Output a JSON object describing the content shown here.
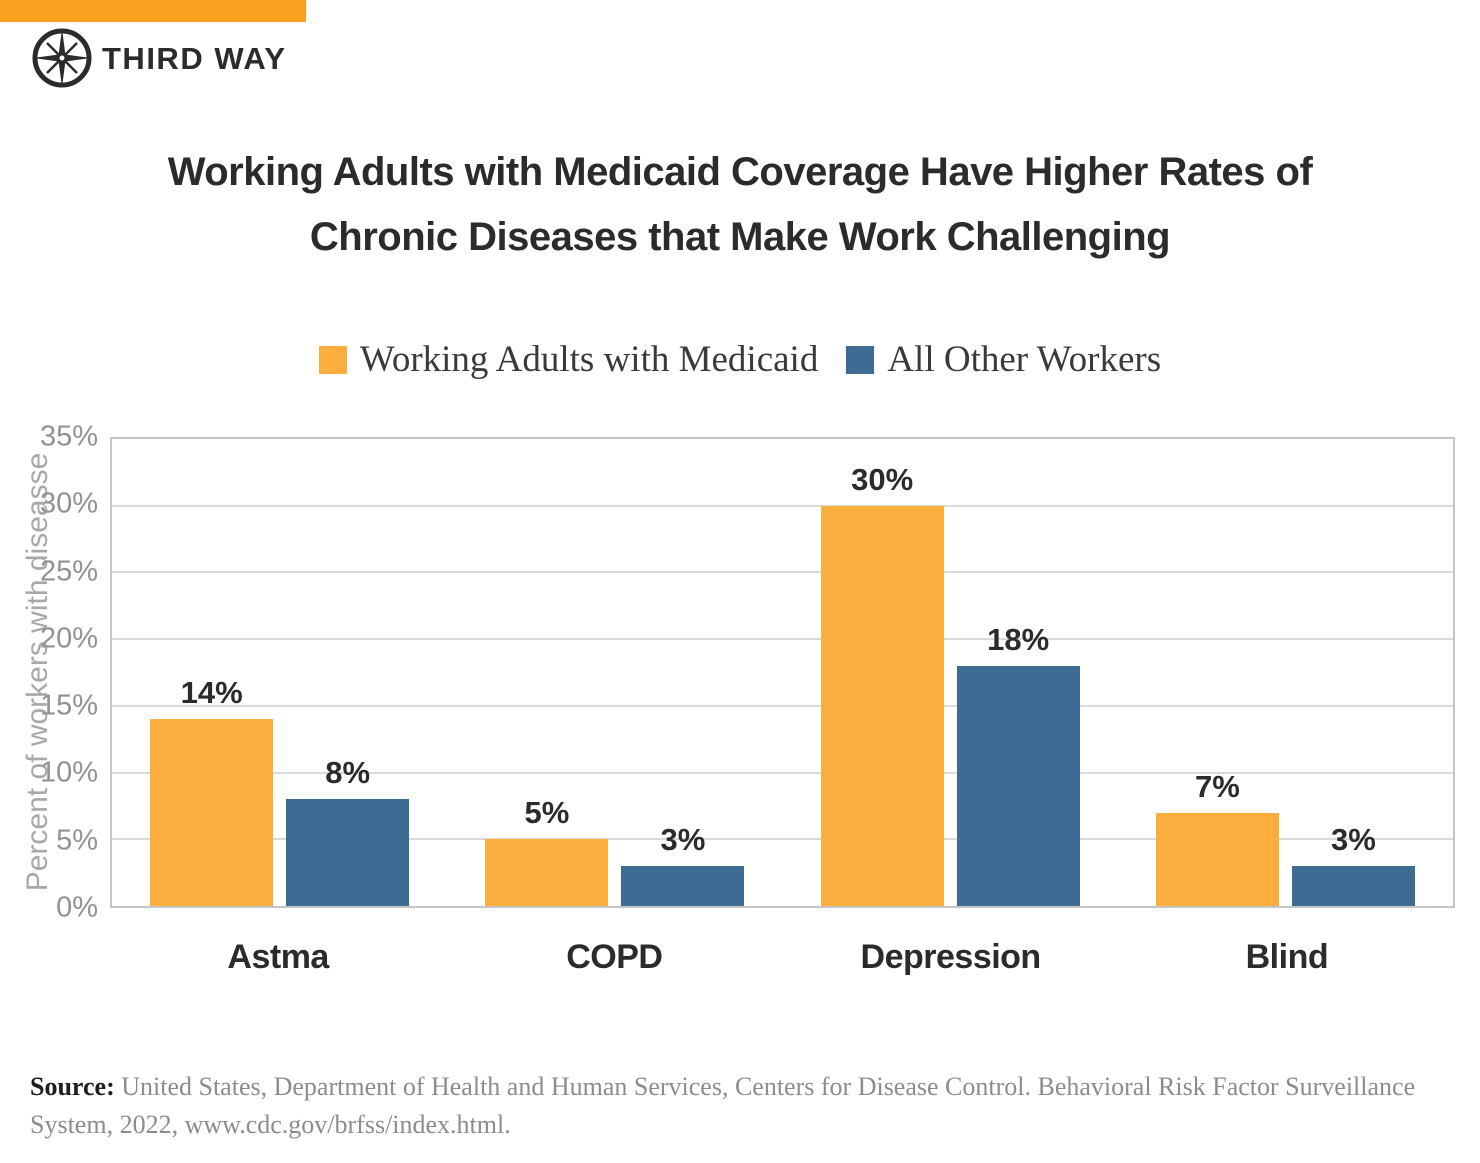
{
  "brand": {
    "name": "THIRD WAY",
    "accent_color": "#F9A11E",
    "logo_icon": "compass-star-icon",
    "dark_color": "#2b2b2b"
  },
  "title": {
    "line1": "Working Adults with Medicaid Coverage Have Higher Rates of",
    "line2": "Chronic Diseases that Make Work Challenging"
  },
  "chart_data": {
    "type": "bar",
    "categories": [
      "Astma",
      "COPD",
      "Depression",
      "Blind"
    ],
    "series": [
      {
        "name": "Working Adults with Medicaid",
        "color": "#FBAD3D",
        "values": [
          14,
          5,
          30,
          7
        ]
      },
      {
        "name": "All Other Workers",
        "color": "#3E6B93",
        "values": [
          8,
          3,
          18,
          3
        ]
      }
    ],
    "value_suffix": "%",
    "ylabel": "Percent of workers with diseasse",
    "xlabel": "",
    "ylim": [
      0,
      35
    ],
    "ytick_step": 5,
    "grid": true,
    "legend_position": "top",
    "gridline_color": "#dadada",
    "tick_color": "#929292"
  },
  "source": {
    "label": "Source:",
    "text": " United States, Department of Health and Human Services, Centers for Disease Control. Behavioral Risk Factor Surveillance System, 2022, www.cdc.gov/brfss/index.html."
  }
}
